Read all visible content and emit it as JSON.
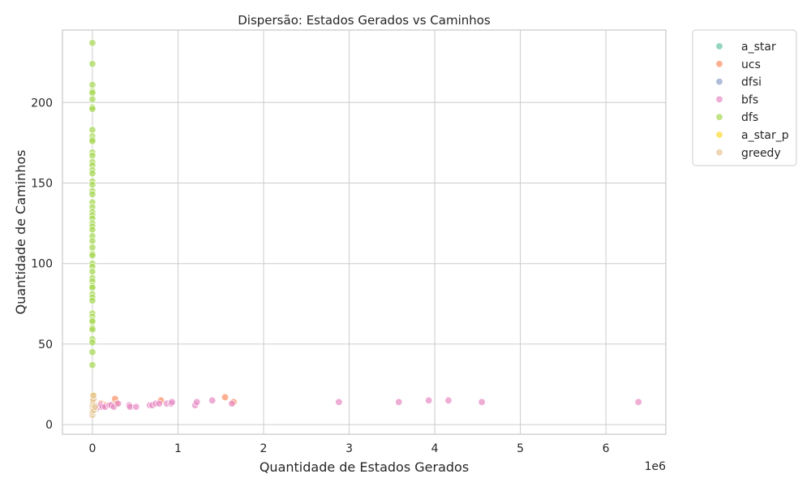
{
  "chart_data": {
    "type": "scatter",
    "title": "Dispersão: Estados Gerados vs Caminhos",
    "xlabel": "Quantidade de Estados Gerados",
    "ylabel": "Quantidade de Caminhos",
    "x_offset_text": "1e6",
    "xlim": [
      -350000,
      6700000
    ],
    "ylim": [
      -6,
      245
    ],
    "x_scale": 1000000,
    "x_ticks": [
      0,
      1000000,
      2000000,
      3000000,
      4000000,
      5000000,
      6000000
    ],
    "x_tick_labels": [
      "0",
      "1",
      "2",
      "3",
      "4",
      "5",
      "6"
    ],
    "y_ticks": [
      0,
      50,
      100,
      150,
      200
    ],
    "y_tick_labels": [
      "0",
      "50",
      "100",
      "150",
      "200"
    ],
    "grid": true,
    "legend_position": "outside-top-right",
    "point_alpha": 0.7,
    "series": [
      {
        "name": "a_star",
        "color": "#66c2a5",
        "points": [
          [
            3000,
            10
          ],
          [
            5000,
            12
          ],
          [
            8000,
            14
          ],
          [
            12000,
            16
          ],
          [
            15000,
            18
          ],
          [
            20000,
            13
          ]
        ]
      },
      {
        "name": "ucs",
        "color": "#fc8d62",
        "points": [
          [
            60000,
            12
          ],
          [
            100000,
            13
          ],
          [
            150000,
            12
          ],
          [
            200000,
            12
          ],
          [
            250000,
            13
          ],
          [
            265000,
            16
          ],
          [
            280000,
            13
          ],
          [
            800000,
            15
          ],
          [
            1550000,
            17
          ],
          [
            1650000,
            14
          ]
        ]
      },
      {
        "name": "dfsi",
        "color": "#8da0cb",
        "points": [
          [
            2000,
            18
          ],
          [
            5000,
            15
          ],
          [
            10000,
            17
          ],
          [
            15000,
            18
          ],
          [
            20000,
            16
          ],
          [
            25000,
            12
          ]
        ]
      },
      {
        "name": "bfs",
        "color": "#e78ac3",
        "points": [
          [
            50000,
            10
          ],
          [
            80000,
            11
          ],
          [
            100000,
            12
          ],
          [
            120000,
            11
          ],
          [
            150000,
            11
          ],
          [
            200000,
            12
          ],
          [
            220000,
            12
          ],
          [
            250000,
            11
          ],
          [
            300000,
            13
          ],
          [
            430000,
            12
          ],
          [
            440000,
            11
          ],
          [
            510000,
            11
          ],
          [
            670000,
            12
          ],
          [
            700000,
            12
          ],
          [
            740000,
            13
          ],
          [
            780000,
            13
          ],
          [
            870000,
            13
          ],
          [
            920000,
            13
          ],
          [
            930000,
            14
          ],
          [
            1200000,
            12
          ],
          [
            1220000,
            14
          ],
          [
            1400000,
            15
          ],
          [
            1630000,
            13
          ],
          [
            2880000,
            14
          ],
          [
            3580000,
            14
          ],
          [
            3930000,
            15
          ],
          [
            4160000,
            15
          ],
          [
            4550000,
            14
          ],
          [
            6380000,
            14
          ]
        ]
      },
      {
        "name": "dfs",
        "color": "#a6d854",
        "points": [
          [
            0,
            237
          ],
          [
            0,
            224
          ],
          [
            0,
            211
          ],
          [
            0,
            207
          ],
          [
            0,
            206
          ],
          [
            0,
            202
          ],
          [
            0,
            197
          ],
          [
            0,
            196
          ],
          [
            0,
            183
          ],
          [
            0,
            179
          ],
          [
            0,
            177
          ],
          [
            0,
            176
          ],
          [
            0,
            169
          ],
          [
            0,
            167
          ],
          [
            0,
            163
          ],
          [
            0,
            161
          ],
          [
            0,
            158
          ],
          [
            0,
            156
          ],
          [
            0,
            151
          ],
          [
            0,
            149
          ],
          [
            0,
            145
          ],
          [
            0,
            143
          ],
          [
            0,
            138
          ],
          [
            0,
            135
          ],
          [
            0,
            132
          ],
          [
            0,
            130
          ],
          [
            0,
            128
          ],
          [
            0,
            125
          ],
          [
            0,
            123
          ],
          [
            0,
            121
          ],
          [
            0,
            117
          ],
          [
            0,
            114
          ],
          [
            0,
            110
          ],
          [
            0,
            106
          ],
          [
            0,
            105
          ],
          [
            0,
            100
          ],
          [
            0,
            98
          ],
          [
            0,
            95
          ],
          [
            0,
            91
          ],
          [
            0,
            89
          ],
          [
            0,
            86
          ],
          [
            0,
            85
          ],
          [
            0,
            81
          ],
          [
            0,
            79
          ],
          [
            0,
            77
          ],
          [
            0,
            69
          ],
          [
            0,
            67
          ],
          [
            0,
            65
          ],
          [
            0,
            64
          ],
          [
            0,
            60
          ],
          [
            0,
            59
          ],
          [
            0,
            53
          ],
          [
            0,
            51
          ],
          [
            0,
            45
          ],
          [
            0,
            37
          ]
        ]
      },
      {
        "name": "a_star_p",
        "color": "#ffd92f",
        "points": [
          [
            2000,
            9
          ],
          [
            4000,
            11
          ],
          [
            6000,
            13
          ],
          [
            8000,
            15
          ],
          [
            10000,
            16
          ],
          [
            5000,
            18
          ]
        ]
      },
      {
        "name": "greedy",
        "color": "#e5c494",
        "points": [
          [
            0,
            6
          ],
          [
            1000,
            8
          ],
          [
            2000,
            10
          ],
          [
            3000,
            12
          ],
          [
            5000,
            14
          ],
          [
            7000,
            15
          ],
          [
            10000,
            16
          ],
          [
            12000,
            18
          ],
          [
            15000,
            9
          ],
          [
            30000,
            11
          ]
        ]
      }
    ]
  }
}
